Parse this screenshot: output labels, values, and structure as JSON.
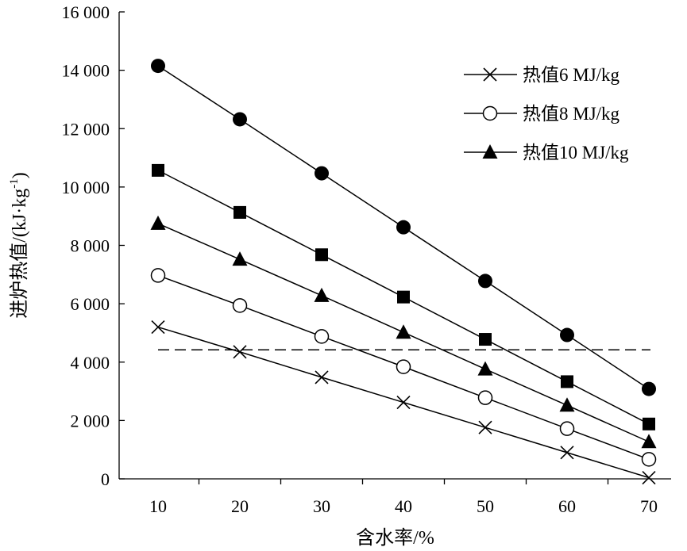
{
  "chart_data": {
    "type": "line",
    "title": "",
    "xlabel": "含水率/%",
    "ylabel_main": "进炉热值/(kJ·kg",
    "ylabel_sup": "-1",
    "ylabel_close": ")",
    "x": [
      10,
      20,
      30,
      40,
      50,
      60,
      70
    ],
    "x_tick_labels": [
      "10",
      "20",
      "30",
      "40",
      "50",
      "60",
      "70"
    ],
    "ylim": [
      0,
      16000
    ],
    "y_ticks": [
      0,
      2000,
      4000,
      6000,
      8000,
      10000,
      12000,
      14000,
      16000
    ],
    "y_tick_labels": [
      "0",
      "2 000",
      "4 000",
      "6 000",
      "8 000",
      "10 000",
      "12 000",
      "14 000",
      "16 000"
    ],
    "series": [
      {
        "name": "热值6 MJ/kg",
        "marker": "x",
        "in_legend": true,
        "values": [
          5200,
          4350,
          3480,
          2620,
          1760,
          900,
          40
        ]
      },
      {
        "name": "热值8 MJ/kg",
        "marker": "circle-open",
        "in_legend": true,
        "values": [
          6970,
          5940,
          4880,
          3840,
          2780,
          1720,
          670
        ]
      },
      {
        "name": "热值10 MJ/kg",
        "marker": "triangle",
        "in_legend": true,
        "values": [
          8750,
          7520,
          6280,
          5020,
          3760,
          2520,
          1270
        ]
      },
      {
        "name": "square-series",
        "marker": "square",
        "in_legend": false,
        "values": [
          10570,
          9130,
          7680,
          6230,
          4780,
          3330,
          1880
        ]
      },
      {
        "name": "circle-filled-series",
        "marker": "circle-filled",
        "in_legend": false,
        "values": [
          14150,
          12320,
          10470,
          8620,
          6780,
          4930,
          3080
        ]
      }
    ],
    "reference_line": {
      "y": 4420,
      "x_from": 10,
      "x_to": 70,
      "style": "dashed"
    },
    "legend_position": "top-right",
    "grid": false
  }
}
